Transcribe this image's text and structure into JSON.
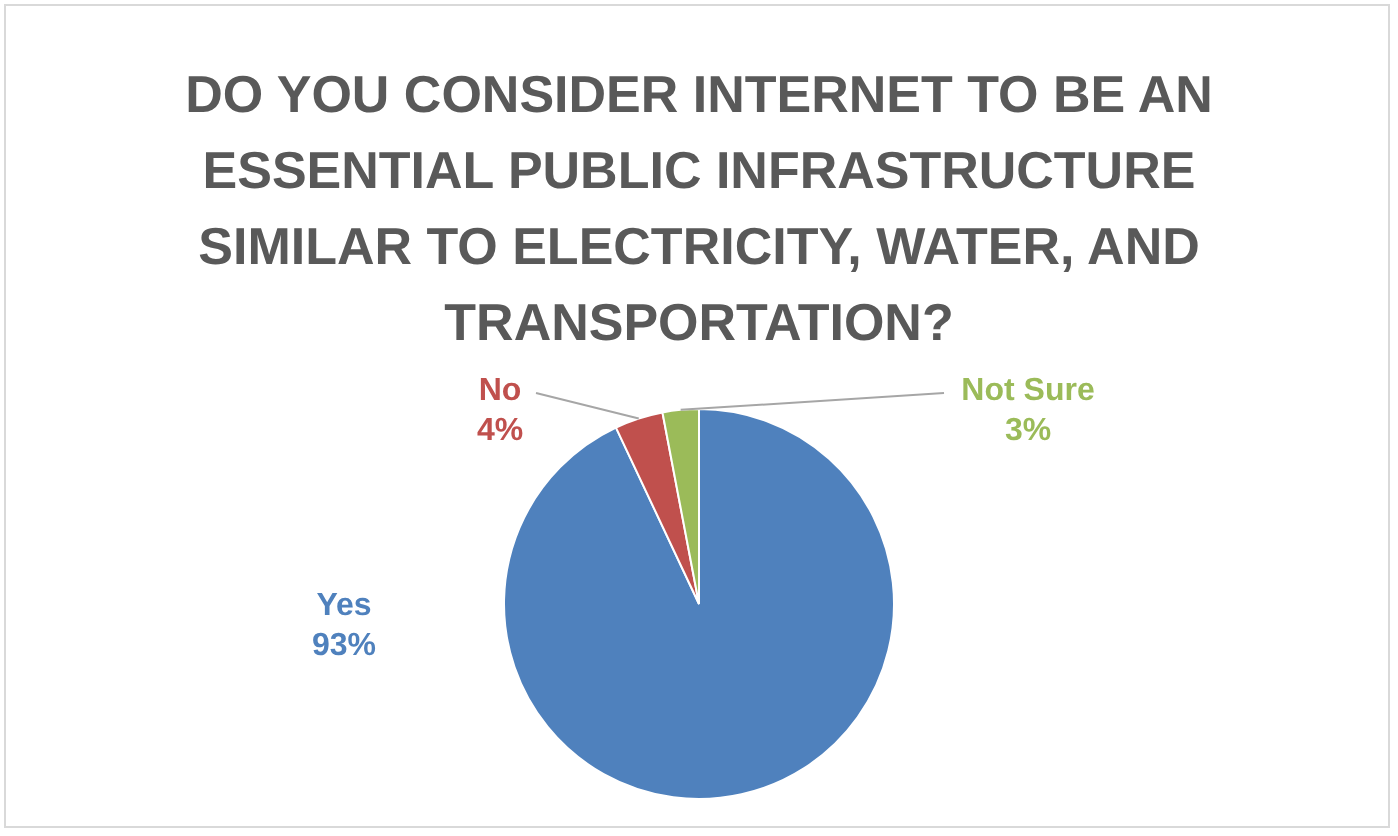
{
  "chart_data": {
    "type": "pie",
    "title": "DO YOU CONSIDER INTERNET TO BE AN ESSENTIAL PUBLIC INFRASTRUCTURE SIMILAR TO ELECTRICITY, WATER, AND TRANSPORTATION?",
    "categories": [
      "Yes",
      "No",
      "Not Sure"
    ],
    "values": [
      93,
      4,
      3
    ],
    "colors": [
      "#4f81bd",
      "#c0504d",
      "#9bbb59"
    ],
    "value_labels": [
      "93%",
      "4%",
      "3%"
    ],
    "legend": false
  }
}
